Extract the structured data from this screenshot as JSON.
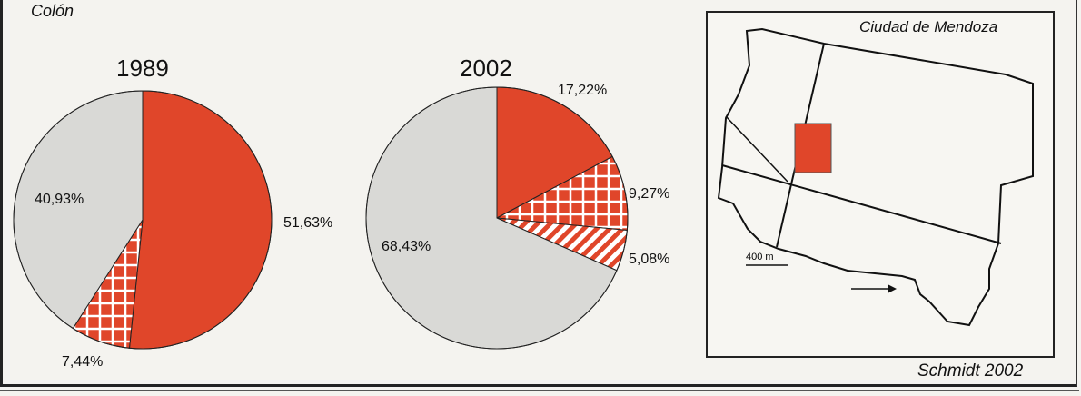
{
  "place_label": "Colón",
  "map": {
    "title": "Ciudad de Mendoza",
    "scale_label": "400 m"
  },
  "source": "Schmidt 2002",
  "colors": {
    "red": "#e0462a",
    "gray": "#d9d9d6",
    "white": "#ffffff"
  },
  "chart_data": [
    {
      "type": "pie",
      "title": "1989",
      "slices": [
        {
          "label": "51,63%",
          "value": 51.63,
          "fill": "solid-red"
        },
        {
          "label": "7,44%",
          "value": 7.44,
          "fill": "red-grid"
        },
        {
          "label": "",
          "value": 0,
          "fill": "red-stripes"
        },
        {
          "label": "40,93%",
          "value": 40.93,
          "fill": "gray"
        }
      ]
    },
    {
      "type": "pie",
      "title": "2002",
      "slices": [
        {
          "label": "17,22%",
          "value": 17.22,
          "fill": "solid-red"
        },
        {
          "label": "9,27%",
          "value": 9.27,
          "fill": "red-grid"
        },
        {
          "label": "5,08%",
          "value": 5.08,
          "fill": "red-stripes"
        },
        {
          "label": "68,43%",
          "value": 68.43,
          "fill": "gray"
        }
      ]
    }
  ]
}
